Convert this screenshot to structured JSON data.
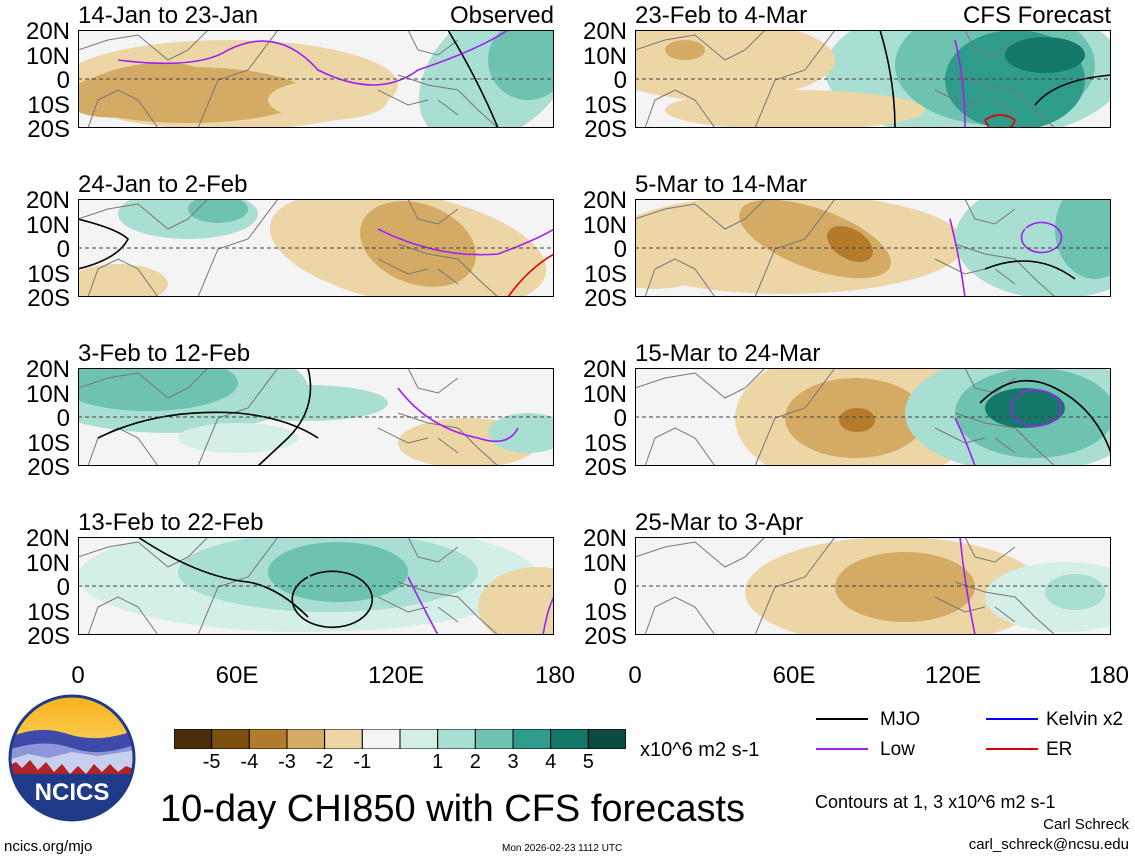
{
  "chart_data": {
    "type": "heatmap",
    "title": "10-day CHI850 with CFS forecasts",
    "variable": "CHI850 (850-hPa velocity potential anomaly)",
    "units": "x10^6 m2 s-1",
    "y_tick_labels": [
      "20N",
      "10N",
      "0",
      "10S",
      "20S"
    ],
    "x_tick_labels": [
      "0",
      "60E",
      "120E",
      "180"
    ],
    "xlim": [
      0,
      180
    ],
    "ylim": [
      -20,
      20
    ],
    "panels": [
      {
        "period": "14-Jan to 23-Jan",
        "source": "Observed"
      },
      {
        "period": "24-Jan to 2-Feb",
        "source": ""
      },
      {
        "period": "3-Feb to 12-Feb",
        "source": ""
      },
      {
        "period": "13-Feb to 22-Feb",
        "source": ""
      },
      {
        "period": "23-Feb to 4-Mar",
        "source": "CFS Forecast"
      },
      {
        "period": "5-Mar to 14-Mar",
        "source": ""
      },
      {
        "period": "15-Mar to 24-Mar",
        "source": ""
      },
      {
        "period": "25-Mar to 3-Apr",
        "source": ""
      }
    ],
    "colorbar": {
      "ticks": [
        "-5",
        "-4",
        "-3",
        "-2",
        "-1",
        "1",
        "2",
        "3",
        "4",
        "5"
      ],
      "colors": [
        "#4a2e09",
        "#7d4f11",
        "#b47c2a",
        "#d4ab64",
        "#ecd6a6",
        "#f7f3e6",
        "#f4f4f4",
        "#d3efe8",
        "#a9ded2",
        "#6ec2b0",
        "#2f9b8b",
        "#137769",
        "#0b4a40"
      ],
      "units_label": "x10^6 m2 s-1"
    },
    "legend": [
      {
        "label": "MJO",
        "color": "#000000"
      },
      {
        "label": "Low",
        "color": "#a020f0"
      },
      {
        "label": "Kelvin x2",
        "color": "#0000ff"
      },
      {
        "label": "ER",
        "color": "#dd0000"
      }
    ],
    "contour_note": "Contours at 1, 3 x10^6 m2 s-1"
  },
  "footer": {
    "logo_text": "NCICS",
    "url": "ncics.org/mjo",
    "timestamp": "Mon 2026-02-23 1112 UTC",
    "author": "Carl Schreck",
    "email": "carl_schreck@ncsu.edu"
  }
}
